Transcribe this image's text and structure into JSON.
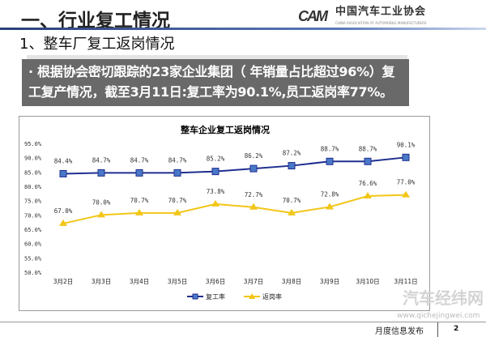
{
  "header": {
    "title": "一、行业复工情况",
    "logo_mark": "CAM",
    "logo_text": "中国汽车工业协会",
    "logo_sub": "CHINA ASSOCIATION OF AUTOMOBILE MANUFACTURERS"
  },
  "subtitle": "1、整车厂复工返岗情况",
  "summary": "· 根据协会密切跟踪的23家企业集团（ 年销量占比超过96%）复工复产情况，截至3月11日:复工率为90.1%,员工返岗率77%。",
  "watermark": {
    "name": "汽车经纬网",
    "url": "www.qichejingwei.com"
  },
  "footer": {
    "label": "月度信息发布",
    "page": "2"
  },
  "chart_data": {
    "type": "line",
    "title": "整车企业复工返岗情况",
    "categories": [
      "3月2日",
      "3月3日",
      "3月4日",
      "3月5日",
      "3月6日",
      "3月7日",
      "3月8日",
      "3月9日",
      "3月10日",
      "3月11日"
    ],
    "ylim": [
      50,
      95
    ],
    "yticks": [
      "50.0%",
      "55.0%",
      "60.0%",
      "65.0%",
      "70.0%",
      "75.0%",
      "80.0%",
      "85.0%",
      "90.0%",
      "95.0%"
    ],
    "grid": false,
    "legend": "bottom",
    "series": [
      {
        "name": "复工率",
        "color": "#1f2f8f",
        "marker": "square",
        "marker_color": "#4a78c8",
        "values": [
          84.4,
          84.7,
          84.7,
          84.7,
          85.2,
          86.2,
          87.2,
          88.7,
          88.7,
          90.1
        ],
        "labels": [
          "84.4%",
          "84.7%",
          "84.7%",
          "84.7%",
          "85.2%",
          "86.2%",
          "87.2%",
          "88.7%",
          "88.7%",
          "90.1%"
        ]
      },
      {
        "name": "返岗率",
        "color": "#f2c618",
        "marker": "triangle",
        "marker_color": "#f2c618",
        "values": [
          67.0,
          70.0,
          70.7,
          70.7,
          73.8,
          72.7,
          70.7,
          72.8,
          76.6,
          77.0
        ],
        "labels": [
          "67.0%",
          "70.0%",
          "70.7%",
          "70.7%",
          "73.8%",
          "72.7%",
          "70.7%",
          "72.8%",
          "76.6%",
          "77.0%"
        ]
      }
    ]
  }
}
